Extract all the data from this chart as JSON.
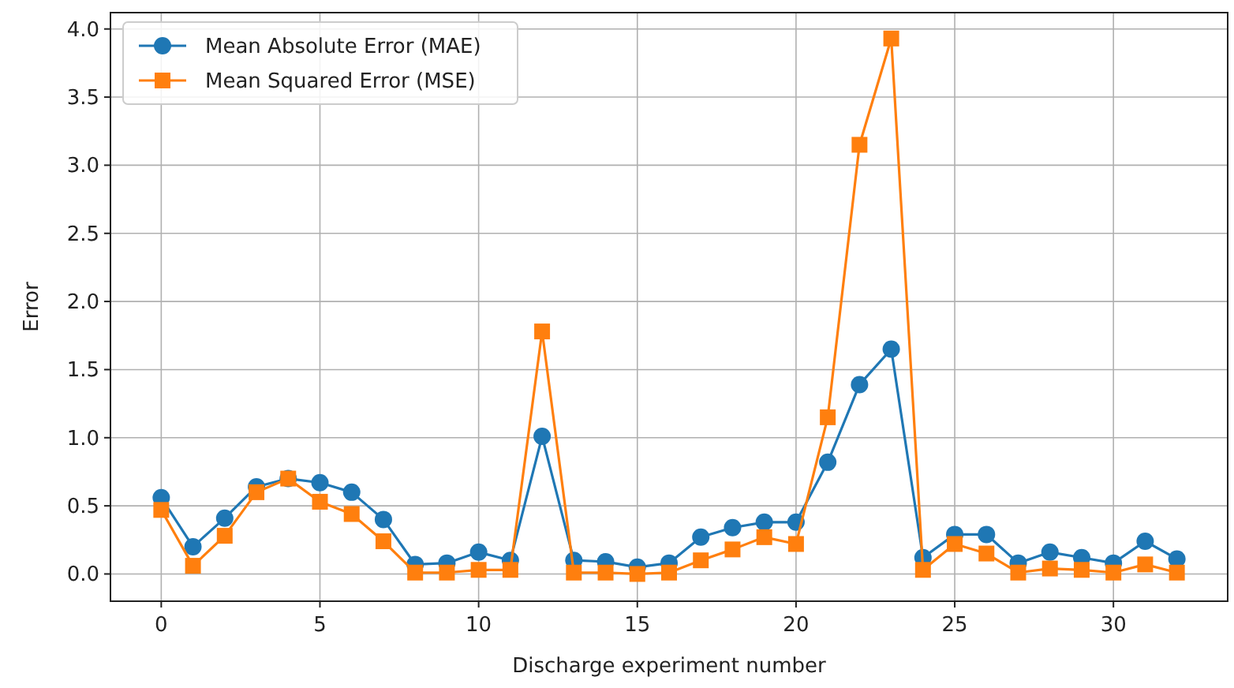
{
  "chart_data": {
    "type": "line",
    "xlabel": "Discharge experiment number",
    "ylabel": "Error",
    "x": [
      0,
      1,
      2,
      3,
      4,
      5,
      6,
      7,
      8,
      9,
      10,
      11,
      12,
      13,
      14,
      15,
      16,
      17,
      18,
      19,
      20,
      21,
      22,
      23,
      24,
      25,
      26,
      27,
      28,
      29,
      30,
      31,
      32
    ],
    "series": [
      {
        "name": "Mean Absolute Error (MAE)",
        "color": "#1f77b4",
        "marker": "circle",
        "values": [
          0.56,
          0.2,
          0.41,
          0.64,
          0.7,
          0.67,
          0.6,
          0.4,
          0.07,
          0.08,
          0.16,
          0.1,
          1.01,
          0.1,
          0.09,
          0.05,
          0.08,
          0.27,
          0.34,
          0.38,
          0.38,
          0.82,
          1.39,
          1.65,
          0.12,
          0.29,
          0.29,
          0.08,
          0.16,
          0.12,
          0.08,
          0.24,
          0.11
        ]
      },
      {
        "name": "Mean Squared Error (MSE)",
        "color": "#ff7f0e",
        "marker": "square",
        "values": [
          0.47,
          0.06,
          0.28,
          0.6,
          0.7,
          0.53,
          0.44,
          0.24,
          0.01,
          0.01,
          0.03,
          0.03,
          1.78,
          0.01,
          0.01,
          0.0,
          0.01,
          0.1,
          0.18,
          0.27,
          0.22,
          1.15,
          3.15,
          3.93,
          0.03,
          0.22,
          0.15,
          0.01,
          0.04,
          0.03,
          0.01,
          0.07,
          0.01
        ]
      }
    ],
    "xlim": [
      -1.6,
      33.6
    ],
    "xticks": [
      0,
      5,
      10,
      15,
      20,
      25,
      30
    ],
    "ylim": [
      -0.2,
      4.12
    ],
    "yticks": [
      {
        "value": 0,
        "label": "0.0"
      },
      {
        "value": 0.5,
        "label": "0.5"
      },
      {
        "value": 1,
        "label": "1.0"
      },
      {
        "value": 1.5,
        "label": "1.5"
      },
      {
        "value": 2,
        "label": "2.0"
      },
      {
        "value": 2.5,
        "label": "2.5"
      },
      {
        "value": 3,
        "label": "3.0"
      },
      {
        "value": 3.5,
        "label": "3.5"
      },
      {
        "value": 4,
        "label": "4.0"
      }
    ],
    "grid": true,
    "legend": "top left",
    "line_style": "solid"
  }
}
